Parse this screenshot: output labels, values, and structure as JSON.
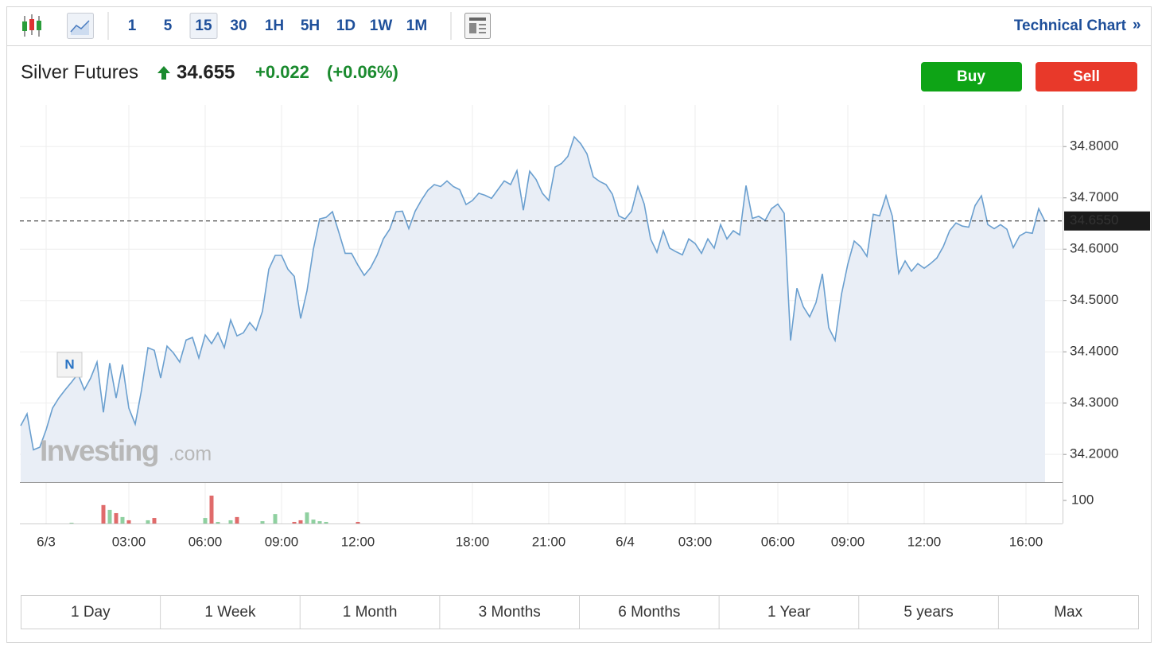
{
  "toolbar": {
    "intervals": [
      "1",
      "5",
      "15",
      "30",
      "1H",
      "5H",
      "1D",
      "1W",
      "1M"
    ],
    "selected_interval": 2,
    "technical_chart": "Technical Chart",
    "chevron": "»"
  },
  "quote": {
    "name": "Silver Futures",
    "last": "34.655",
    "change": "+0.022",
    "change_pct": "(+0.06%)"
  },
  "buttons": {
    "buy": "Buy",
    "sell": "Sell"
  },
  "chart_data": {
    "type": "area",
    "color": "#6a9fcf",
    "fill": "#e9eef6",
    "grid": true,
    "values": [
      34.256,
      34.279,
      34.209,
      34.214,
      34.248,
      34.29,
      34.31,
      34.326,
      34.341,
      34.357,
      34.326,
      34.349,
      34.38,
      34.282,
      34.378,
      34.31,
      34.375,
      34.29,
      34.259,
      34.326,
      34.408,
      34.403,
      34.349,
      34.411,
      34.398,
      34.38,
      34.423,
      34.428,
      34.388,
      34.433,
      34.416,
      34.437,
      34.408,
      34.462,
      34.431,
      34.437,
      34.457,
      34.442,
      34.479,
      34.561,
      34.588,
      34.588,
      34.561,
      34.547,
      34.465,
      34.519,
      34.6,
      34.659,
      34.662,
      34.673,
      34.633,
      34.592,
      34.592,
      34.569,
      34.549,
      34.564,
      34.588,
      34.62,
      34.639,
      34.673,
      34.674,
      34.64,
      34.674,
      34.696,
      34.715,
      34.726,
      34.722,
      34.733,
      34.722,
      34.716,
      34.687,
      34.695,
      34.709,
      34.705,
      34.699,
      34.716,
      34.733,
      34.726,
      34.753,
      34.676,
      34.752,
      34.736,
      34.709,
      34.695,
      34.76,
      34.767,
      34.781,
      34.819,
      34.806,
      34.786,
      34.741,
      34.732,
      34.726,
      34.707,
      34.665,
      34.659,
      34.674,
      34.722,
      34.688,
      34.62,
      34.594,
      34.636,
      34.602,
      34.595,
      34.589,
      34.62,
      34.611,
      34.592,
      34.62,
      34.602,
      34.648,
      34.62,
      34.636,
      34.628,
      34.724,
      34.66,
      34.664,
      34.656,
      34.679,
      34.688,
      34.67,
      34.422,
      34.524,
      34.488,
      34.468,
      34.496,
      34.552,
      34.447,
      34.422,
      34.512,
      34.571,
      34.616,
      34.605,
      34.586,
      34.668,
      34.665,
      34.704,
      34.664,
      34.553,
      34.577,
      34.557,
      34.572,
      34.563,
      34.572,
      34.583,
      34.605,
      34.636,
      34.651,
      34.645,
      34.643,
      34.685,
      34.704,
      34.648,
      34.64,
      34.648,
      34.639,
      34.603,
      34.626,
      34.633,
      34.631,
      34.679,
      34.654
    ],
    "xlim": [
      0,
      161
    ],
    "xticks": [
      {
        "value": 4,
        "label": "6/3"
      },
      {
        "value": 17,
        "label": "03:00"
      },
      {
        "value": 29,
        "label": "06:00"
      },
      {
        "value": 41,
        "label": "09:00"
      },
      {
        "value": 53,
        "label": "12:00"
      },
      {
        "value": 71,
        "label": "18:00"
      },
      {
        "value": 83,
        "label": "21:00"
      },
      {
        "value": 95,
        "label": "6/4"
      },
      {
        "value": 106,
        "label": "03:00"
      },
      {
        "value": 119,
        "label": "06:00"
      },
      {
        "value": 130,
        "label": "09:00"
      },
      {
        "value": 142,
        "label": "12:00"
      },
      {
        "value": 158,
        "label": "16:00"
      }
    ],
    "ylim": [
      34.146,
      34.881
    ],
    "yticks": [
      {
        "value": 34.2,
        "label": "34.2000"
      },
      {
        "value": 34.3,
        "label": "34.3000"
      },
      {
        "value": 34.4,
        "label": "34.4000"
      },
      {
        "value": 34.5,
        "label": "34.5000"
      },
      {
        "value": 34.6,
        "label": "34.6000"
      },
      {
        "value": 34.7,
        "label": "34.7000"
      },
      {
        "value": 34.8,
        "label": "34.8000"
      }
    ],
    "last_price": {
      "value": 34.655,
      "label": "34.6550"
    },
    "marker": "N",
    "watermark": {
      "brand": "Investing",
      "suffix": ".com"
    },
    "volume": {
      "up_color": "#8fd0a0",
      "down_color": "#e06b6b",
      "ylim": [
        0,
        176
      ],
      "yticks": [
        100
      ],
      "values": [
        0,
        0,
        0,
        0,
        0,
        0,
        0,
        0,
        3,
        0,
        0,
        0,
        0,
        80,
        59,
        45,
        28,
        14,
        0,
        0,
        14,
        24,
        0,
        0,
        0,
        0,
        0,
        0,
        0,
        24,
        121,
        7,
        0,
        14,
        28,
        0,
        0,
        0,
        10,
        0,
        41,
        0,
        0,
        7,
        14,
        48,
        17,
        10,
        7,
        0,
        0,
        0,
        0,
        7,
        0,
        0,
        0,
        0,
        0,
        0,
        0,
        0,
        0,
        0,
        0,
        0,
        0,
        0,
        0,
        0,
        0,
        0,
        0,
        0,
        0,
        0,
        0,
        0,
        0,
        0,
        0,
        0,
        0,
        0,
        0,
        0,
        0,
        0,
        0,
        0,
        0,
        0,
        0,
        0,
        0,
        0,
        0,
        0,
        0,
        0,
        0,
        0,
        0,
        0,
        0,
        0,
        0,
        0,
        0,
        0,
        0,
        0,
        0,
        0,
        0,
        0,
        0,
        0,
        0,
        0,
        0,
        0,
        0,
        0,
        0,
        0,
        0,
        0,
        0,
        0,
        0,
        0,
        0,
        0,
        0,
        0,
        0,
        0,
        0,
        0,
        0,
        0,
        0,
        0,
        0,
        0,
        0,
        0,
        0,
        0,
        0,
        0,
        0,
        0,
        0,
        0,
        0,
        0,
        0,
        0,
        0,
        0
      ]
    }
  },
  "ranges": [
    "1 Day",
    "1 Week",
    "1 Month",
    "3 Months",
    "6 Months",
    "1 Year",
    "5 years",
    "Max"
  ]
}
